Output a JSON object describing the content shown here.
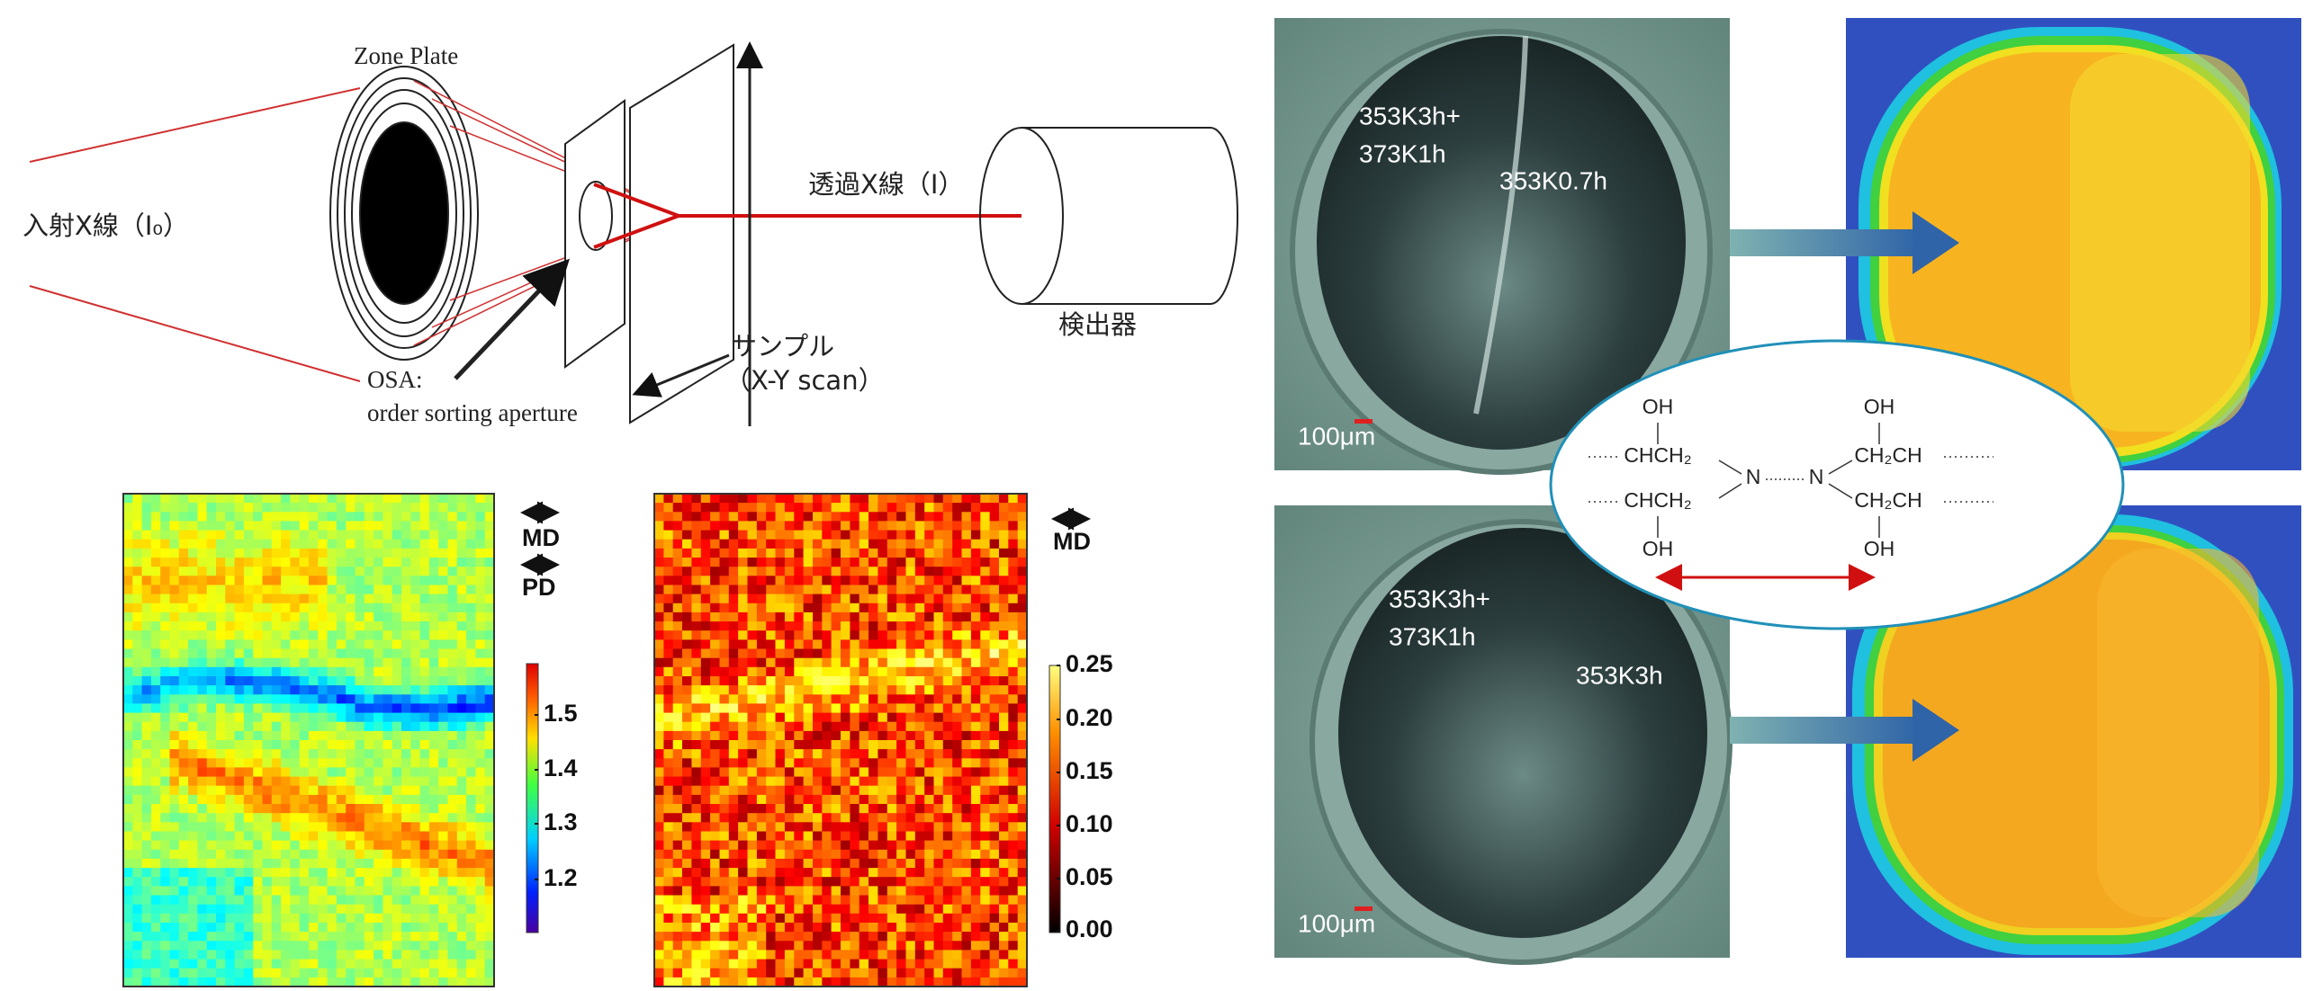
{
  "schematic": {
    "zone_plate": "Zone Plate",
    "incident": "入射X線（I₀）",
    "transmitted": "透過X線（I）",
    "detector": "検出器",
    "sample": "サンプル",
    "scan": "（X-Y scan）",
    "osa": "OSA:",
    "osa_full": "order sorting aperture"
  },
  "maps": [
    {
      "directions": [
        "MD",
        "PD"
      ],
      "colorbar_ticks": [
        "1.5",
        "1.4",
        "1.3",
        "1.2"
      ]
    },
    {
      "directions": [
        "MD"
      ],
      "colorbar_ticks": [
        "0.25",
        "0.20",
        "0.15",
        "0.10",
        "0.05",
        "0.00"
      ]
    }
  ],
  "micrographs": [
    {
      "labels": [
        "353K3h+",
        "373K1h",
        "353K0.7h"
      ],
      "scale": "100μm"
    },
    {
      "labels": [
        "353K3h+",
        "373K1h",
        "353K3h"
      ],
      "scale": "100μm"
    }
  ],
  "structure": {
    "groups": [
      "OH",
      "CHCH₂",
      "N",
      "N",
      "CH₂CH",
      "OH",
      "CHCH₂",
      "OH",
      "CH₂CH",
      "OH"
    ]
  }
}
